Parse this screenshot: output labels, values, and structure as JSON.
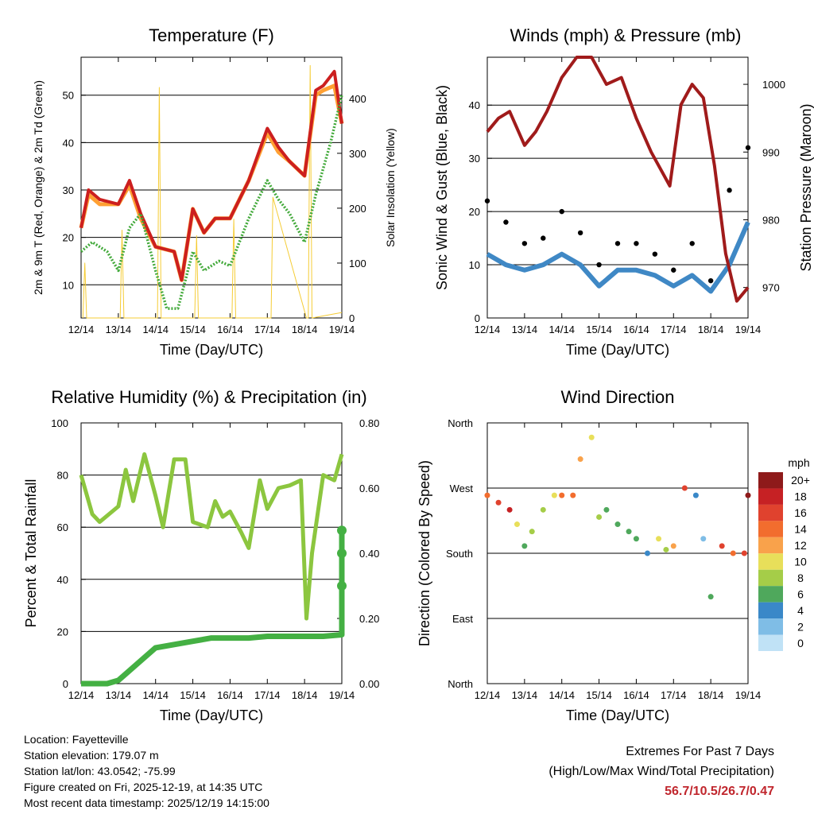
{
  "chart_data": [
    {
      "type": "line",
      "title": "Temperature (F)",
      "xlabel": "Time (Day/UTC)",
      "ylabel": "2m & 9m T (Red, Orange) & 2m Td (Green)",
      "ylabel_right": "Solar Insolation (Yellow)",
      "x_ticks": [
        "12/14",
        "13/14",
        "14/14",
        "15/14",
        "16/14",
        "17/14",
        "18/14",
        "19/14"
      ],
      "y_ticks": [
        10,
        20,
        30,
        40,
        50
      ],
      "y2_ticks": [
        0,
        100,
        200,
        300,
        400
      ],
      "ylim": [
        3,
        58
      ],
      "y2lim": [
        0,
        475
      ],
      "series": [
        {
          "name": "2m T",
          "color": "#ffa033",
          "x": [
            0,
            0.2,
            0.5,
            1,
            1.3,
            1.6,
            2,
            2.5,
            2.7,
            3,
            3.3,
            3.6,
            4,
            4.5,
            5,
            5.3,
            5.6,
            6,
            6.3,
            6.5,
            6.8,
            7
          ],
          "values": [
            22,
            29,
            27,
            27,
            31,
            24,
            18,
            17,
            11,
            26,
            21,
            24,
            24,
            32,
            42,
            38,
            36,
            33,
            50,
            51,
            52,
            44
          ]
        },
        {
          "name": "9m T",
          "color": "#cc1f1f",
          "x": [
            0,
            0.2,
            0.5,
            1,
            1.3,
            1.6,
            2,
            2.5,
            2.7,
            3,
            3.3,
            3.6,
            4,
            4.5,
            5,
            5.3,
            5.6,
            6,
            6.3,
            6.5,
            6.8,
            7
          ],
          "values": [
            22,
            30,
            28,
            27,
            32,
            25,
            18,
            17,
            11,
            26,
            21,
            24,
            24,
            32,
            43,
            39,
            36,
            33,
            51,
            52,
            55,
            44
          ]
        },
        {
          "name": "2m Td",
          "color": "#44aa3c",
          "x": [
            0,
            0.3,
            0.7,
            1,
            1.3,
            1.6,
            2,
            2.3,
            2.6,
            3,
            3.3,
            3.7,
            4,
            4.5,
            5,
            5.3,
            5.6,
            6,
            6.3,
            6.7,
            7
          ],
          "values": [
            17,
            19,
            17,
            13,
            22,
            25,
            13,
            5,
            5,
            17,
            13,
            15,
            14,
            24,
            32,
            28,
            25,
            19,
            29,
            40,
            50
          ]
        },
        {
          "name": "Solar Insolation",
          "color": "#f5cc35",
          "x": [
            0.05,
            0.1,
            0.15,
            1.05,
            1.1,
            1.15,
            1.15,
            2.05,
            2.1,
            2.15,
            2.15,
            3.05,
            3.1,
            3.15,
            3.15,
            4.05,
            4.1,
            4.15,
            5.05,
            5.1,
            5.15,
            6.05,
            6.1,
            6.15,
            6.2,
            7
          ],
          "values": [
            0,
            100,
            0,
            0,
            160,
            0,
            0,
            0,
            420,
            0,
            0,
            0,
            150,
            0,
            0,
            0,
            180,
            0,
            0,
            0,
            220,
            0,
            0,
            460,
            0,
            10
          ]
        }
      ]
    },
    {
      "type": "scatter",
      "title": "Winds (mph) & Pressure (mb)",
      "xlabel": "Time (Day/UTC)",
      "ylabel": "Sonic Wind & Gust (Blue, Black)",
      "ylabel_right": "Station Pressure (Maroon)",
      "x_ticks": [
        "12/14",
        "13/14",
        "14/14",
        "15/14",
        "16/14",
        "17/14",
        "18/14",
        "19/14"
      ],
      "y_ticks": [
        0,
        10,
        20,
        30,
        40
      ],
      "y2_ticks": [
        970,
        980,
        990,
        1000
      ],
      "ylim": [
        0,
        49
      ],
      "y2lim": [
        965.5,
        1004
      ],
      "series": [
        {
          "name": "Sonic Wind",
          "color": "#3f88c5",
          "x": [
            0,
            0.5,
            1,
            1.5,
            2,
            2.5,
            3,
            3.5,
            4,
            4.5,
            5,
            5.5,
            6,
            6.5,
            7
          ],
          "values": [
            12,
            10,
            9,
            10,
            12,
            10,
            6,
            9,
            9,
            8,
            6,
            8,
            5,
            10,
            18
          ]
        },
        {
          "name": "Gust",
          "color": "#000000",
          "x": [
            0,
            0.5,
            1,
            1.5,
            2,
            2.5,
            3,
            3.5,
            4,
            4.5,
            5,
            5.5,
            6,
            6.5,
            7
          ],
          "values": [
            22,
            18,
            14,
            15,
            20,
            16,
            10,
            14,
            14,
            12,
            9,
            14,
            7,
            24,
            32
          ]
        },
        {
          "name": "Station Pressure",
          "color": "#a01b1b",
          "x": [
            0,
            0.3,
            0.6,
            1,
            1.3,
            1.6,
            2,
            2.4,
            2.8,
            3.2,
            3.6,
            4,
            4.4,
            4.9,
            5.2,
            5.5,
            5.8,
            6.1,
            6.4,
            6.7,
            7
          ],
          "values": [
            993,
            995,
            996,
            991,
            993,
            996,
            1001,
            1004,
            1004,
            1000,
            1001,
            995,
            990,
            985,
            997,
            1000,
            998,
            988,
            975,
            968,
            970
          ]
        }
      ]
    },
    {
      "type": "line",
      "title": "Relative Humidity (%) & Precipitation (in)",
      "xlabel": "Time (Day/UTC)",
      "ylabel": "Percent & Total Rainfall",
      "x_ticks": [
        "12/14",
        "13/14",
        "14/14",
        "15/14",
        "16/14",
        "17/14",
        "18/14",
        "19/14"
      ],
      "y_ticks": [
        0,
        20,
        40,
        60,
        80,
        100
      ],
      "y2_ticks": [
        "0.00",
        "0.20",
        "0.40",
        "0.60",
        "0.80"
      ],
      "ylim": [
        0,
        100
      ],
      "y2lim": [
        0,
        0.8
      ],
      "series": [
        {
          "name": "Relative Humidity",
          "color": "#8cc63f",
          "x": [
            0,
            0.3,
            0.5,
            1,
            1.2,
            1.4,
            1.7,
            2,
            2.2,
            2.5,
            2.8,
            3,
            3.4,
            3.6,
            3.8,
            4,
            4.3,
            4.5,
            4.8,
            5,
            5.3,
            5.6,
            5.9,
            6.05,
            6.2,
            6.5,
            6.8,
            7
          ],
          "values": [
            80,
            65,
            62,
            68,
            82,
            70,
            88,
            72,
            60,
            86,
            86,
            62,
            60,
            70,
            64,
            66,
            58,
            52,
            78,
            67,
            75,
            76,
            78,
            25,
            50,
            80,
            78,
            88
          ]
        },
        {
          "name": "Precipitation",
          "color": "#44b043",
          "x": [
            0,
            0.7,
            1,
            1.2,
            1.5,
            2,
            2.5,
            3,
            3.5,
            4,
            4.5,
            5,
            5.5,
            6,
            6.5,
            7,
            7,
            7,
            7
          ],
          "values": [
            0,
            0,
            0.01,
            0.03,
            0.06,
            0.11,
            0.12,
            0.13,
            0.14,
            0.14,
            0.14,
            0.145,
            0.145,
            0.145,
            0.145,
            0.15,
            0.3,
            0.4,
            0.47
          ]
        }
      ]
    },
    {
      "type": "scatter",
      "title": "Wind Direction",
      "xlabel": "Time (Day/UTC)",
      "ylabel": "Direction (Colored By Speed)",
      "x_ticks": [
        "12/14",
        "13/14",
        "14/14",
        "15/14",
        "16/14",
        "17/14",
        "18/14",
        "19/14"
      ],
      "y_ticks": [
        "North",
        "East",
        "South",
        "West",
        "North"
      ],
      "ylim": [
        0,
        360
      ],
      "colorbar_title": "mph",
      "colorbar_labels": [
        "20+",
        "18",
        "16",
        "14",
        "12",
        "10",
        "8",
        "6",
        "4",
        "2",
        "0"
      ],
      "colorbar_colors": [
        "#8e1a1a",
        "#c62124",
        "#e0422e",
        "#f26d2e",
        "#f9a24b",
        "#e8df5a",
        "#a5cd48",
        "#4fa85c",
        "#3a88c8",
        "#7fbde6",
        "#c0e2f6"
      ],
      "series": [
        {
          "name": "Direction",
          "x": [
            0,
            0.3,
            0.6,
            0.8,
            1,
            1.2,
            1.5,
            1.8,
            2,
            2.3,
            2.5,
            2.8,
            3,
            3.2,
            3.5,
            3.8,
            4,
            4.3,
            4.6,
            4.8,
            5,
            5.3,
            5.6,
            5.8,
            6,
            6.3,
            6.6,
            6.9,
            7
          ],
          "values": [
            260,
            250,
            240,
            220,
            190,
            210,
            240,
            260,
            260,
            260,
            310,
            340,
            230,
            240,
            220,
            210,
            200,
            180,
            200,
            185,
            190,
            270,
            260,
            200,
            120,
            190,
            180,
            180,
            260
          ],
          "speeds": [
            14,
            15,
            18,
            10,
            6,
            8,
            8,
            10,
            14,
            14,
            12,
            10,
            8,
            6,
            6,
            6,
            6,
            4,
            10,
            8,
            12,
            16,
            4,
            2,
            6,
            16,
            14,
            16,
            20
          ]
        }
      ]
    }
  ],
  "station": {
    "location": "Location: Fayetteville",
    "elevation": "Station elevation: 179.07 m",
    "latlon": "Station lat/lon: 43.0542; -75.99",
    "created": "Figure created on Fri, 2025-12-19, at 14:35 UTC",
    "recent": "Most recent data timestamp: 2025/12/19 14:15:00"
  },
  "extremes": {
    "title": "Extremes For Past 7 Days",
    "subtitle": "(High/Low/Max Wind/Total Precipitation)",
    "values": "56.7/10.5/26.7/0.47"
  }
}
